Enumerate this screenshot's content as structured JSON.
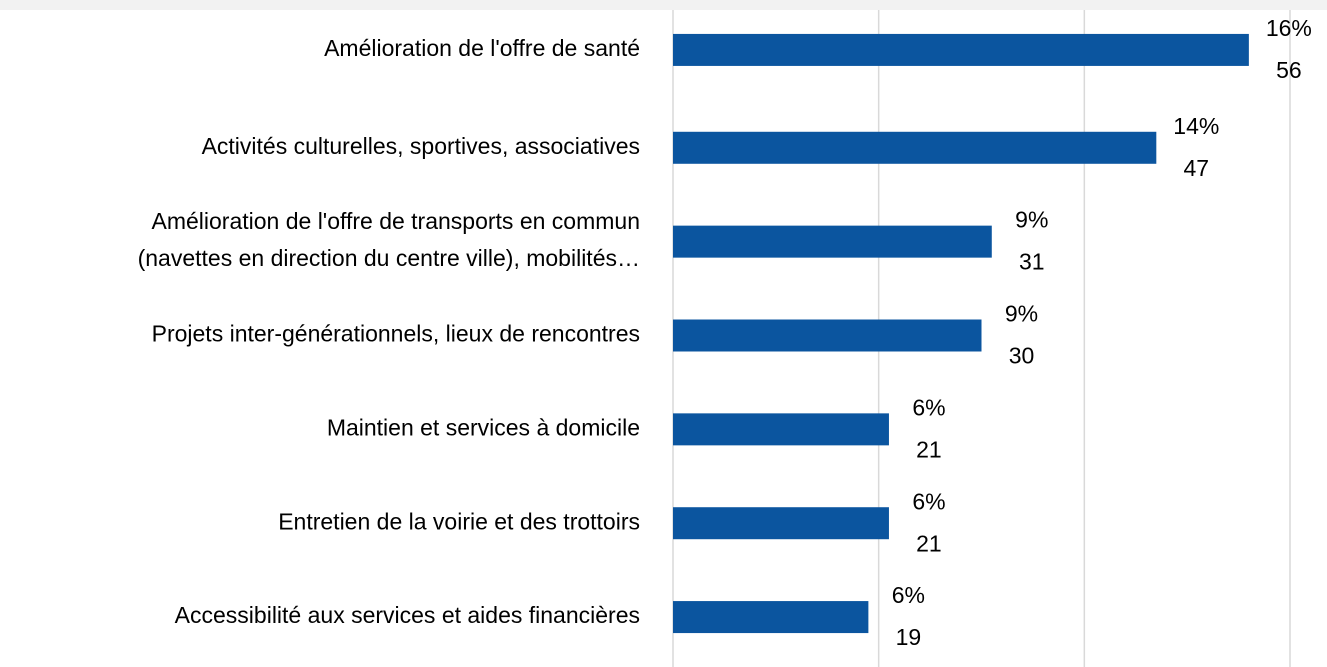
{
  "chart_data": {
    "type": "barh",
    "categories": [
      "Amélioration de l'offre de santé",
      "Activités culturelles, sportives, associatives",
      [
        "Amélioration de l'offre de transports en commun",
        "(navettes en direction du centre ville), mobilités…"
      ],
      "Projets inter-générationnels, lieux de rencontres",
      "Maintien et services à domicile",
      "Entretien de la voirie et des trottoirs",
      "Accessibilité aux services et aides financières"
    ],
    "values": [
      56,
      47,
      31,
      30,
      21,
      21,
      19
    ],
    "percent_labels": [
      "16%",
      "14%",
      "9%",
      "9%",
      "6%",
      "6%",
      "6%"
    ],
    "color": "#0b559f",
    "xlim": [
      0,
      60
    ],
    "xticks": [
      0,
      20,
      40,
      60
    ],
    "grid": true
  }
}
